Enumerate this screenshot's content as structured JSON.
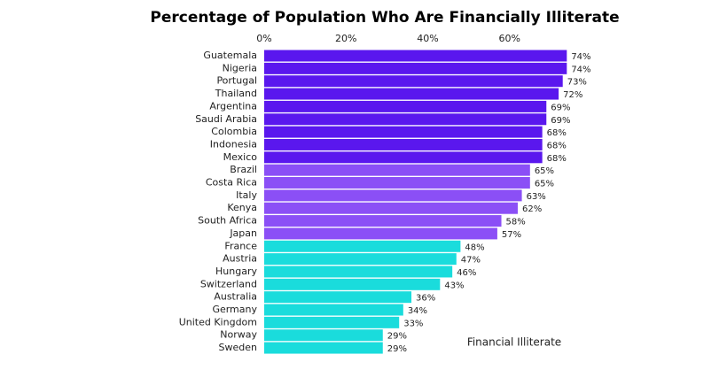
{
  "chart_data": {
    "type": "barh",
    "title": "Percentage of Population Who Are Financially Illiterate",
    "annotation": "Financial Illiterate",
    "categories": [
      "Guatemala",
      "Nigeria",
      "Portugal",
      "Thailand",
      "Argentina",
      "Saudi Arabia",
      "Colombia",
      "Indonesia",
      "Mexico",
      "Brazil",
      "Costa Rica",
      "Italy",
      "Kenya",
      "South Africa",
      "Japan",
      "France",
      "Austria",
      "Hungary",
      "Switzerland",
      "Australia",
      "Germany",
      "United Kingdom",
      "Norway",
      "Sweden"
    ],
    "values": [
      74,
      74,
      73,
      72,
      69,
      69,
      68,
      68,
      68,
      65,
      65,
      63,
      62,
      58,
      57,
      48,
      47,
      46,
      43,
      36,
      34,
      33,
      29,
      29
    ],
    "value_labels": [
      "74%",
      "74%",
      "73%",
      "72%",
      "69%",
      "69%",
      "68%",
      "68%",
      "68%",
      "65%",
      "65%",
      "63%",
      "62%",
      "58%",
      "57%",
      "48%",
      "47%",
      "46%",
      "43%",
      "36%",
      "34%",
      "33%",
      "29%",
      "29%"
    ],
    "colors": [
      "#5a17ee",
      "#5a17ee",
      "#5a17ee",
      "#5a17ee",
      "#5a17ee",
      "#5a17ee",
      "#5a17ee",
      "#5a17ee",
      "#5a17ee",
      "#8b4ff6",
      "#8b4ff6",
      "#8b4ff6",
      "#8b4ff6",
      "#8b4ff6",
      "#8b4ff6",
      "#1adcdc",
      "#1adcdc",
      "#1adcdc",
      "#1adcdc",
      "#1adcdc",
      "#1adcdc",
      "#1adcdc",
      "#1adcdc",
      "#1adcdc"
    ],
    "xlim": [
      0,
      80
    ],
    "xticks": [
      {
        "value": 0,
        "label": "0%"
      },
      {
        "value": 20,
        "label": "20%"
      },
      {
        "value": 40,
        "label": "40%"
      },
      {
        "value": 60,
        "label": "60%"
      }
    ]
  }
}
